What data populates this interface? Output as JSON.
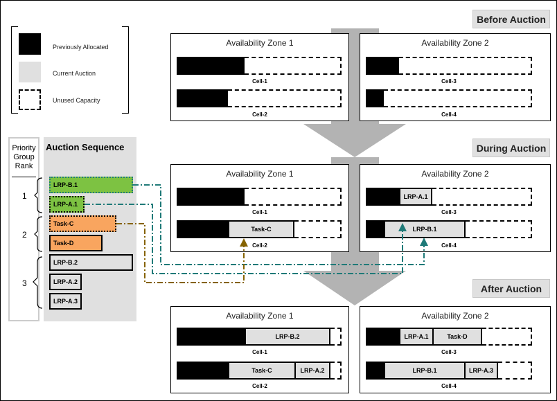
{
  "legend": {
    "previously_allocated": "Previously Allocated",
    "current_auction": "Current Auction",
    "unused_capacity": "Unused Capacity"
  },
  "stages": {
    "before": "Before Auction",
    "during": "During Auction",
    "after": "After Auction"
  },
  "zones": {
    "z1": "Availability Zone 1",
    "z2": "Availability Zone 2"
  },
  "cells": {
    "c1": "Cell-1",
    "c2": "Cell-2",
    "c3": "Cell-3",
    "c4": "Cell-4"
  },
  "priority": {
    "header": "Priority Group Rank",
    "ranks": [
      "1",
      "2",
      "3"
    ]
  },
  "sequence": {
    "title": "Auction Sequence",
    "items": [
      "LRP-B.1",
      "LRP-A.1",
      "Task-C",
      "Task-D",
      "LRP-B.2",
      "LRP-A.2",
      "LRP-A.3"
    ]
  },
  "colors": {
    "lrp_group1": "#7dc242",
    "task_group2": "#f9a55f",
    "current": "#e0e0e0",
    "teal_arrow": "#1f7a78",
    "brown_arrow": "#866300",
    "big_arrow": "#b3b3b3"
  }
}
